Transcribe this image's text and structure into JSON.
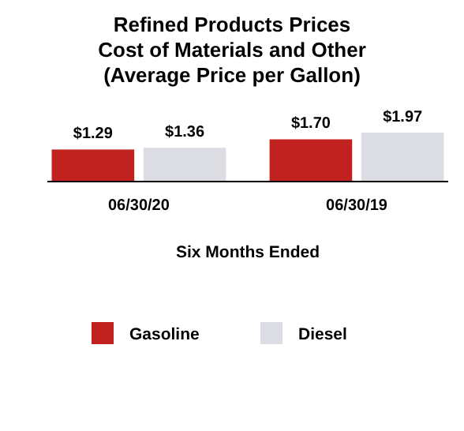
{
  "chart_data": {
    "type": "bar",
    "title": "Refined Products Prices\nCost of Materials and Other\n(Average Price per Gallon)",
    "xlabel": "Six Months Ended",
    "categories": [
      "06/30/20",
      "06/30/19"
    ],
    "series": [
      {
        "name": "Gasoline",
        "color": "#c1211f",
        "values": [
          1.29,
          1.7
        ],
        "value_labels": [
          "$1.29",
          "$1.70"
        ]
      },
      {
        "name": "Diesel",
        "color": "#dcdde2",
        "values": [
          1.36,
          1.97
        ],
        "value_labels": [
          "$1.36",
          "$1.97"
        ]
      }
    ],
    "tick_labels": "x",
    "legend": "bottom"
  }
}
